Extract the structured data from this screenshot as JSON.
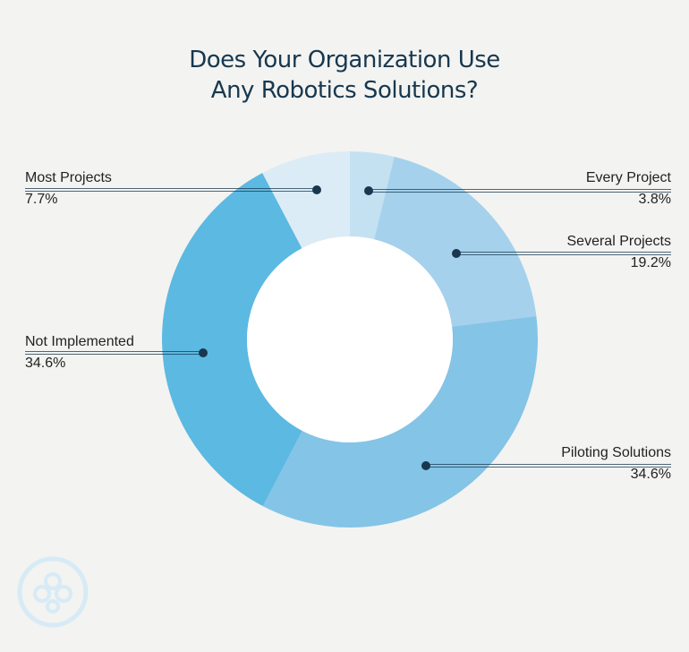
{
  "title": {
    "line1": "Does Your Organization Use",
    "line2": "Any Robotics Solutions?"
  },
  "chart_data": {
    "type": "pie",
    "donut": true,
    "title": "Does Your Organization Use Any Robotics Solutions?",
    "slices": [
      {
        "label": "Every Project",
        "value": 3.8,
        "display": "3.8%",
        "color": "#c4e1f2"
      },
      {
        "label": "Several Projects",
        "value": 19.2,
        "display": "19.2%",
        "color": "#a5d1ec"
      },
      {
        "label": "Piloting Solutions",
        "value": 34.6,
        "display": "34.6%",
        "color": "#84c4e6"
      },
      {
        "label": "Not Implemented",
        "value": 34.6,
        "display": "34.6%",
        "color": "#5bb9e2"
      },
      {
        "label": "Most Projects",
        "value": 7.7,
        "display": "7.7%",
        "color": "#dcecf6"
      }
    ]
  },
  "colors": {
    "title": "#17384f",
    "leader": "#17384f",
    "background": "#f3f3f1",
    "logo": "#d6ebf5"
  },
  "logo": {
    "icon": "company-logo-circles"
  }
}
